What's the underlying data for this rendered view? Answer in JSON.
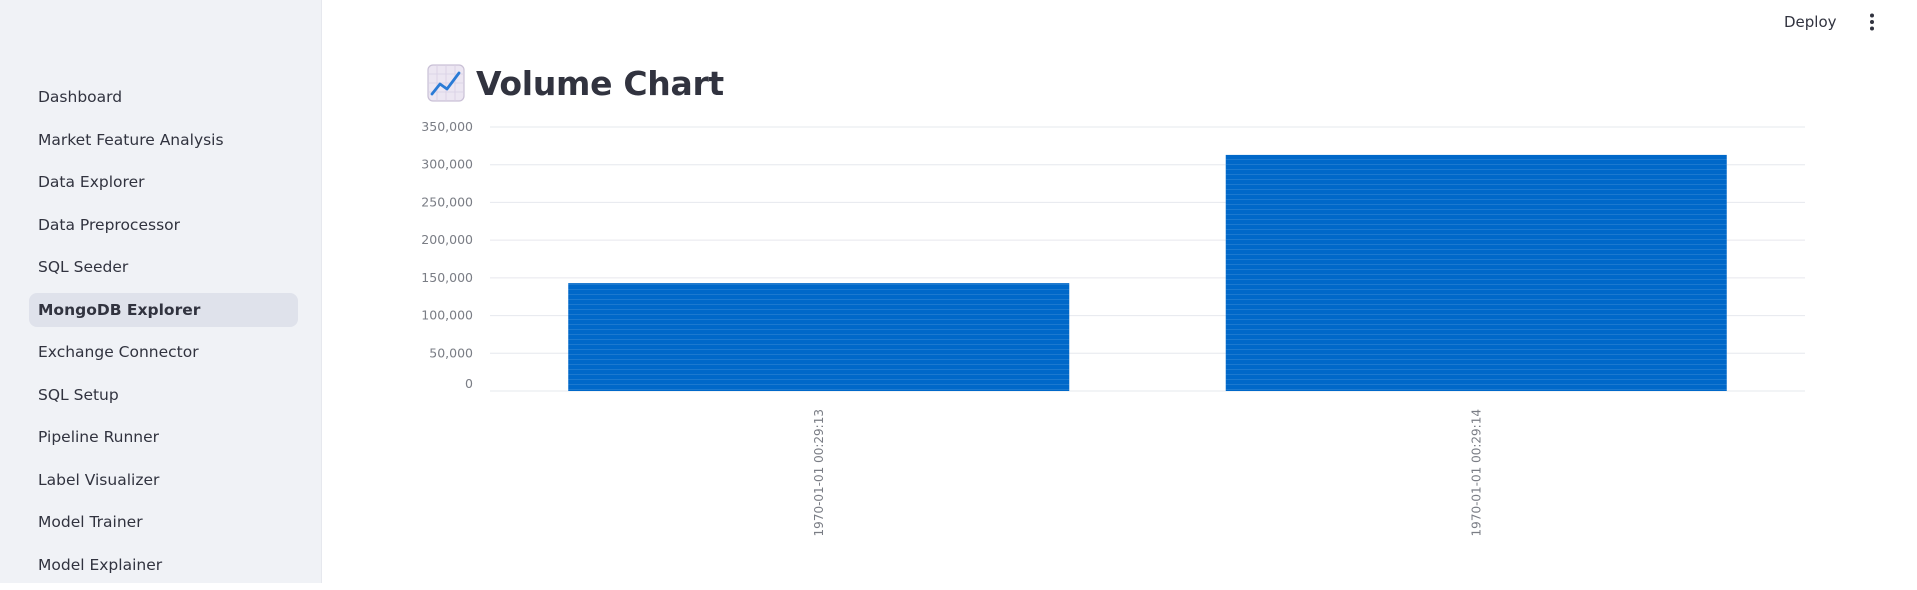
{
  "sidebar": {
    "items": [
      {
        "label": "Dashboard",
        "active": false
      },
      {
        "label": "Market Feature Analysis",
        "active": false
      },
      {
        "label": "Data Explorer",
        "active": false
      },
      {
        "label": "Data Preprocessor",
        "active": false
      },
      {
        "label": "SQL Seeder",
        "active": false
      },
      {
        "label": "MongoDB Explorer",
        "active": true
      },
      {
        "label": "Exchange Connector",
        "active": false
      },
      {
        "label": "SQL Setup",
        "active": false
      },
      {
        "label": "Pipeline Runner",
        "active": false
      },
      {
        "label": "Label Visualizer",
        "active": false
      },
      {
        "label": "Model Trainer",
        "active": false
      },
      {
        "label": "Model Explainer",
        "active": false
      }
    ]
  },
  "topbar": {
    "deploy_label": "Deploy",
    "menu_icon": "more-vertical-icon"
  },
  "main": {
    "title": "Volume Chart",
    "title_icon": "chart-increasing-icon"
  },
  "colors": {
    "bar": "#0068c9",
    "grid": "#e6e8ee",
    "sidebar_bg": "#f0f2f6",
    "active_item_bg": "#dfe2eb"
  },
  "chart_data": {
    "type": "bar",
    "categories": [
      "1970-01-01 00:29:13",
      "1970-01-01 00:29:14"
    ],
    "values": [
      143000,
      313000
    ],
    "ylim": [
      0,
      350000
    ],
    "yticks": [
      0,
      50000,
      100000,
      150000,
      200000,
      250000,
      300000,
      350000
    ],
    "ytick_labels": [
      "0",
      "50,000",
      "100,000",
      "150,000",
      "200,000",
      "250,000",
      "300,000",
      "350,000"
    ],
    "grid": true,
    "legend": "none"
  }
}
